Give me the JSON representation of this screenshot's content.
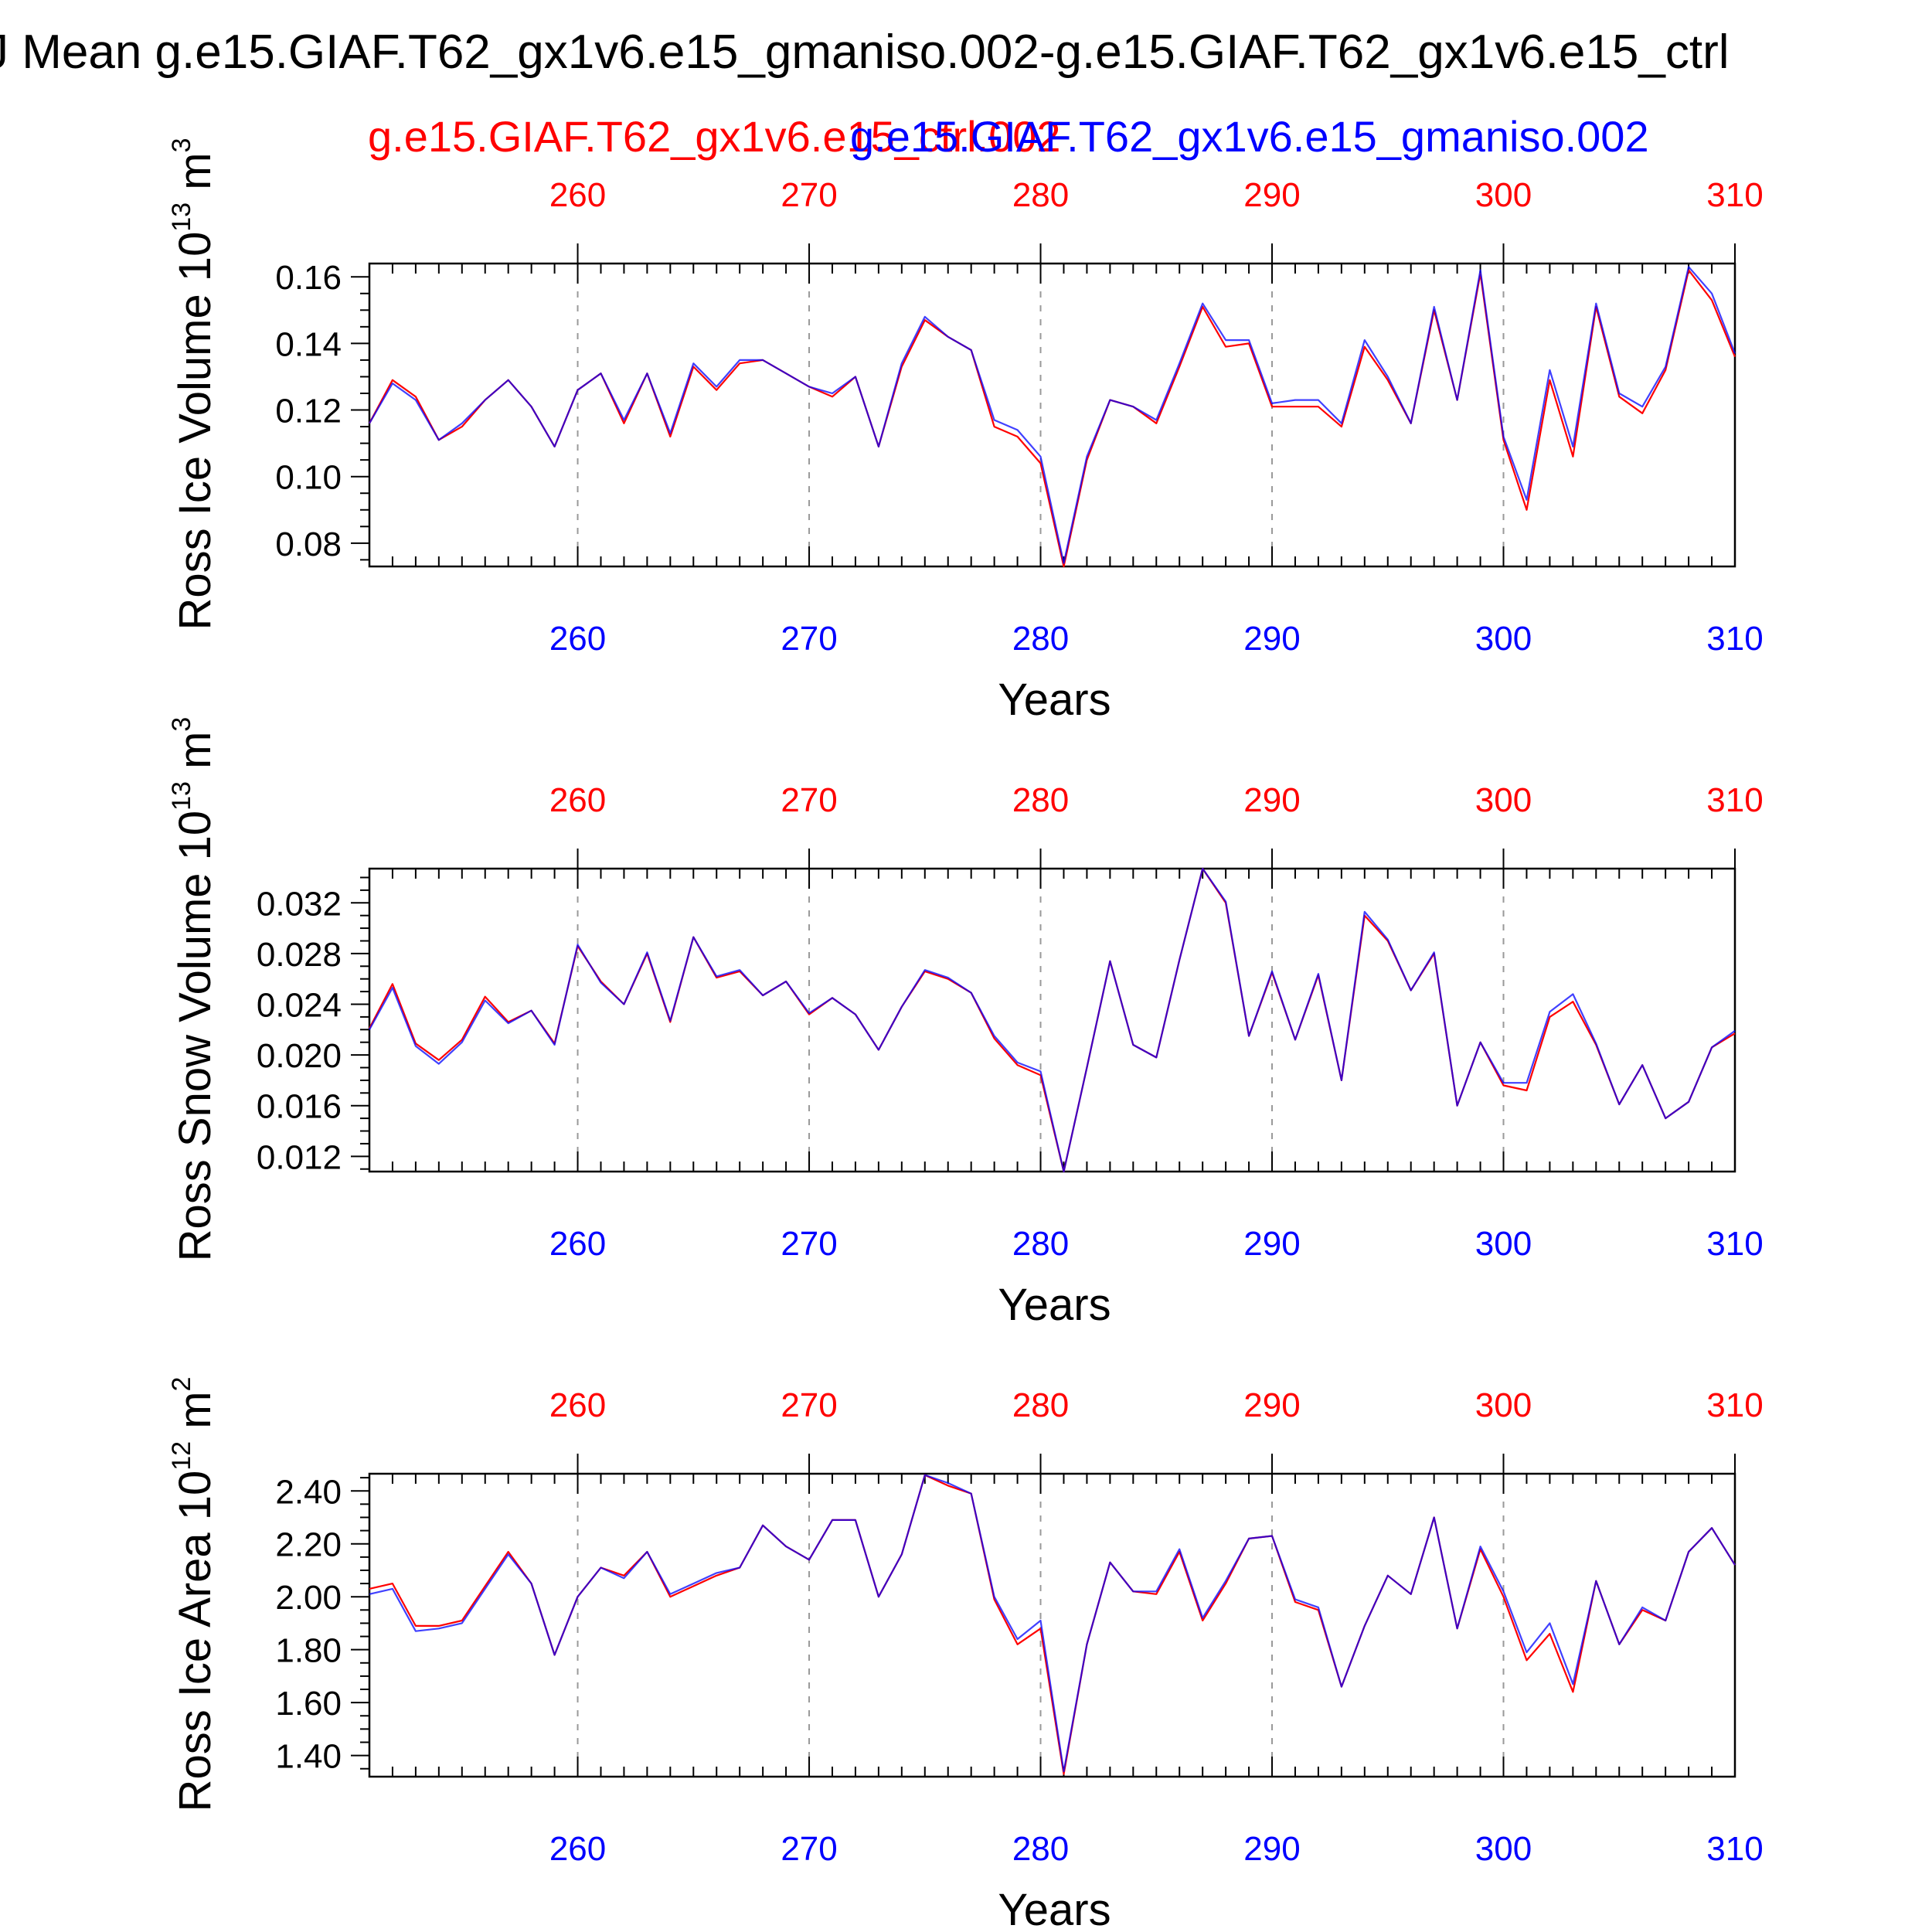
{
  "header": {
    "title": "J Mean g.e15.GIAF.T62_gx1v6.e15_gmaniso.002-g.e15.GIAF.T62_gx1v6.e15_ctrl",
    "legend_red": "g.e15.GIAF.T62_gx1v6.e15_ctrl.002",
    "legend_blue": "g.e15.GIAF.T62_gx1v6.e15_gmaniso.002"
  },
  "colors": {
    "red_series": "#ff0000",
    "blue_series": "#0000ff",
    "axis": "#000000",
    "grid": "#999999"
  },
  "chart_data": [
    {
      "type": "line",
      "xlabel": "Years",
      "ylabel_main": "Ross Ice Volume 10",
      "ylabel_exp": "13",
      "ylabel_unit": " m",
      "ylabel_unit_exp": "3",
      "xlim": [
        251,
        310
      ],
      "ylim": [
        0.073,
        0.164
      ],
      "yticks": [
        0.08,
        0.1,
        0.12,
        0.14,
        0.16
      ],
      "ytick_labels": [
        "0.08",
        "0.10",
        "0.12",
        "0.14",
        "0.16"
      ],
      "xticks": [
        260,
        270,
        280,
        290,
        300,
        310
      ],
      "xtick_labels_top": [
        "260",
        "270",
        "280",
        "290",
        "300",
        "310"
      ],
      "xtick_labels_bottom": [
        "260",
        "270",
        "280",
        "290",
        "300",
        "310"
      ],
      "grid_x": true,
      "x": [
        251,
        252,
        253,
        254,
        255,
        256,
        257,
        258,
        259,
        260,
        261,
        262,
        263,
        264,
        265,
        266,
        267,
        268,
        269,
        270,
        271,
        272,
        273,
        274,
        275,
        276,
        277,
        278,
        279,
        280,
        281,
        282,
        283,
        284,
        285,
        286,
        287,
        288,
        289,
        290,
        291,
        292,
        293,
        294,
        295,
        296,
        297,
        298,
        299,
        300,
        301,
        302,
        303,
        304,
        305,
        306,
        307,
        308,
        309,
        310
      ],
      "series": [
        {
          "name": "g.e15.GIAF.T62_gx1v6.e15_ctrl.002",
          "color": "#ff0000",
          "values": [
            0.116,
            0.129,
            0.124,
            0.111,
            0.115,
            0.123,
            0.129,
            0.121,
            0.109,
            0.126,
            0.131,
            0.116,
            0.131,
            0.112,
            0.133,
            0.126,
            0.134,
            0.135,
            0.131,
            0.127,
            0.124,
            0.13,
            0.109,
            0.133,
            0.147,
            0.142,
            0.138,
            0.115,
            0.112,
            0.104,
            0.073,
            0.105,
            0.123,
            0.121,
            0.116,
            0.133,
            0.151,
            0.139,
            0.14,
            0.121,
            0.121,
            0.121,
            0.115,
            0.139,
            0.129,
            0.116,
            0.15,
            0.123,
            0.161,
            0.111,
            0.09,
            0.129,
            0.106,
            0.151,
            0.124,
            0.119,
            0.132,
            0.162,
            0.153,
            0.136
          ]
        },
        {
          "name": "g.e15.GIAF.T62_gx1v6.e15_gmaniso.002",
          "color": "#0000ff",
          "values": [
            0.116,
            0.128,
            0.123,
            0.111,
            0.116,
            0.123,
            0.129,
            0.121,
            0.109,
            0.126,
            0.131,
            0.117,
            0.131,
            0.113,
            0.134,
            0.127,
            0.135,
            0.135,
            0.131,
            0.127,
            0.125,
            0.13,
            0.109,
            0.134,
            0.148,
            0.142,
            0.138,
            0.117,
            0.114,
            0.106,
            0.074,
            0.106,
            0.123,
            0.121,
            0.117,
            0.134,
            0.152,
            0.141,
            0.141,
            0.122,
            0.123,
            0.123,
            0.116,
            0.141,
            0.13,
            0.116,
            0.151,
            0.123,
            0.162,
            0.112,
            0.093,
            0.132,
            0.109,
            0.152,
            0.125,
            0.121,
            0.133,
            0.163,
            0.155,
            0.137
          ]
        }
      ]
    },
    {
      "type": "line",
      "xlabel": "Years",
      "ylabel_main": "Ross Snow Volume 10",
      "ylabel_exp": "13",
      "ylabel_unit": " m",
      "ylabel_unit_exp": "3",
      "xlim": [
        251,
        310
      ],
      "ylim": [
        0.0108,
        0.0347
      ],
      "yticks": [
        0.012,
        0.016,
        0.02,
        0.024,
        0.028,
        0.032
      ],
      "ytick_labels": [
        "0.012",
        "0.016",
        "0.020",
        "0.024",
        "0.028",
        "0.032"
      ],
      "xticks": [
        260,
        270,
        280,
        290,
        300,
        310
      ],
      "xtick_labels_top": [
        "260",
        "270",
        "280",
        "290",
        "300",
        "310"
      ],
      "xtick_labels_bottom": [
        "260",
        "270",
        "280",
        "290",
        "300",
        "310"
      ],
      "grid_x": true,
      "x": [
        251,
        252,
        253,
        254,
        255,
        256,
        257,
        258,
        259,
        260,
        261,
        262,
        263,
        264,
        265,
        266,
        267,
        268,
        269,
        270,
        271,
        272,
        273,
        274,
        275,
        276,
        277,
        278,
        279,
        280,
        281,
        282,
        283,
        284,
        285,
        286,
        287,
        288,
        289,
        290,
        291,
        292,
        293,
        294,
        295,
        296,
        297,
        298,
        299,
        300,
        301,
        302,
        303,
        304,
        305,
        306,
        307,
        308,
        309,
        310
      ],
      "series": [
        {
          "name": "g.e15.GIAF.T62_gx1v6.e15_ctrl.002",
          "color": "#ff0000",
          "values": [
            0.0221,
            0.0256,
            0.0209,
            0.0196,
            0.0212,
            0.0246,
            0.0226,
            0.0235,
            0.0209,
            0.0286,
            0.0258,
            0.024,
            0.028,
            0.0226,
            0.0293,
            0.0261,
            0.0266,
            0.0247,
            0.0258,
            0.0232,
            0.0245,
            0.0232,
            0.0204,
            0.0238,
            0.0266,
            0.026,
            0.0249,
            0.0213,
            0.0192,
            0.0184,
            0.0108,
            0.019,
            0.0274,
            0.0208,
            0.0198,
            0.0275,
            0.0347,
            0.032,
            0.0215,
            0.0265,
            0.0212,
            0.0263,
            0.018,
            0.031,
            0.029,
            0.0251,
            0.028,
            0.016,
            0.021,
            0.0176,
            0.0172,
            0.023,
            0.0242,
            0.0208,
            0.0161,
            0.0192,
            0.015,
            0.0163,
            0.0206,
            0.0217
          ]
        },
        {
          "name": "g.e15.GIAF.T62_gx1v6.e15_gmaniso.002",
          "color": "#0000ff",
          "values": [
            0.022,
            0.0253,
            0.0207,
            0.0193,
            0.021,
            0.0243,
            0.0225,
            0.0235,
            0.0208,
            0.0287,
            0.0257,
            0.024,
            0.0281,
            0.0227,
            0.0293,
            0.0262,
            0.0267,
            0.0247,
            0.0258,
            0.0233,
            0.0245,
            0.0232,
            0.0204,
            0.0238,
            0.0267,
            0.0261,
            0.0249,
            0.0215,
            0.0194,
            0.0187,
            0.0108,
            0.019,
            0.0274,
            0.0208,
            0.0198,
            0.0275,
            0.0347,
            0.0321,
            0.0215,
            0.0266,
            0.0212,
            0.0264,
            0.018,
            0.0313,
            0.0291,
            0.0251,
            0.0281,
            0.016,
            0.021,
            0.0178,
            0.0178,
            0.0234,
            0.0248,
            0.0209,
            0.0161,
            0.0192,
            0.015,
            0.0163,
            0.0206,
            0.0219
          ]
        }
      ]
    },
    {
      "type": "line",
      "xlabel": "Years",
      "ylabel_main": "Ross Ice Area 10",
      "ylabel_exp": "12",
      "ylabel_unit": " m",
      "ylabel_unit_exp": "2",
      "xlim": [
        251,
        310
      ],
      "ylim": [
        1.32,
        2.465
      ],
      "yticks": [
        1.4,
        1.6,
        1.8,
        2.0,
        2.2,
        2.4
      ],
      "ytick_labels": [
        "1.40",
        "1.60",
        "1.80",
        "2.00",
        "2.20",
        "2.40"
      ],
      "xticks": [
        260,
        270,
        280,
        290,
        300,
        310
      ],
      "xtick_labels_top": [
        "260",
        "270",
        "280",
        "290",
        "300",
        "310"
      ],
      "xtick_labels_bottom": [
        "260",
        "270",
        "280",
        "290",
        "300",
        "310"
      ],
      "grid_x": true,
      "x": [
        251,
        252,
        253,
        254,
        255,
        256,
        257,
        258,
        259,
        260,
        261,
        262,
        263,
        264,
        265,
        266,
        267,
        268,
        269,
        270,
        271,
        272,
        273,
        274,
        275,
        276,
        277,
        278,
        279,
        280,
        281,
        282,
        283,
        284,
        285,
        286,
        287,
        288,
        289,
        290,
        291,
        292,
        293,
        294,
        295,
        296,
        297,
        298,
        299,
        300,
        301,
        302,
        303,
        304,
        305,
        306,
        307,
        308,
        309,
        310
      ],
      "series": [
        {
          "name": "g.e15.GIAF.T62_gx1v6.e15_ctrl.002",
          "color": "#ff0000",
          "values": [
            2.03,
            2.05,
            1.89,
            1.89,
            1.91,
            2.04,
            2.17,
            2.05,
            1.78,
            2.0,
            2.11,
            2.08,
            2.17,
            2.0,
            2.04,
            2.08,
            2.11,
            2.27,
            2.19,
            2.14,
            2.29,
            2.29,
            2.0,
            2.16,
            2.46,
            2.42,
            2.39,
            1.99,
            1.82,
            1.88,
            1.33,
            1.82,
            2.13,
            2.02,
            2.01,
            2.17,
            1.91,
            2.05,
            2.22,
            2.23,
            1.98,
            1.95,
            1.66,
            1.89,
            2.08,
            2.01,
            2.3,
            1.88,
            2.18,
            2.0,
            1.76,
            1.86,
            1.64,
            2.06,
            1.82,
            1.95,
            1.91,
            2.17,
            2.26,
            2.12
          ]
        },
        {
          "name": "g.e15.GIAF.T62_gx1v6.e15_gmaniso.002",
          "color": "#0000ff",
          "values": [
            2.01,
            2.03,
            1.87,
            1.88,
            1.9,
            2.03,
            2.16,
            2.05,
            1.78,
            2.0,
            2.11,
            2.07,
            2.17,
            2.01,
            2.05,
            2.09,
            2.11,
            2.27,
            2.19,
            2.14,
            2.29,
            2.29,
            2.0,
            2.16,
            2.46,
            2.43,
            2.39,
            2.0,
            1.84,
            1.91,
            1.34,
            1.82,
            2.13,
            2.02,
            2.02,
            2.18,
            1.92,
            2.06,
            2.22,
            2.23,
            1.99,
            1.96,
            1.66,
            1.89,
            2.08,
            2.01,
            2.3,
            1.88,
            2.19,
            2.02,
            1.79,
            1.9,
            1.67,
            2.06,
            1.82,
            1.96,
            1.91,
            2.17,
            2.26,
            2.12
          ]
        }
      ]
    }
  ]
}
